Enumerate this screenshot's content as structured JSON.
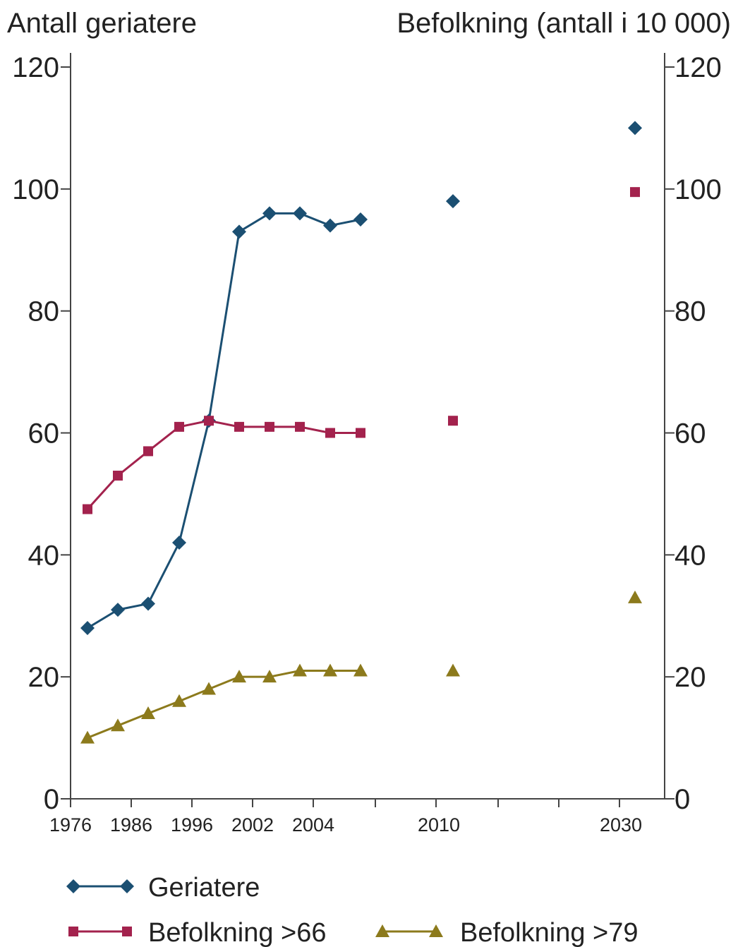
{
  "chart_data": {
    "type": "line",
    "ylabel_left": "Antall geriatere",
    "ylabel_right": "Befolkning (antall i 10 000)",
    "ylim": [
      0,
      120
    ],
    "y_ticks": [
      0,
      20,
      40,
      60,
      80,
      100,
      120
    ],
    "x_tick_labels": [
      "1976",
      "1986",
      "1996",
      "2002",
      "2004",
      "2010",
      "2030"
    ],
    "grid": false,
    "legend_position": "bottom",
    "series": [
      {
        "name": "Geriatere",
        "color": "#1b4f72",
        "marker": "diamond",
        "points": [
          {
            "x": 1976,
            "y": 28
          },
          {
            "x": 1981,
            "y": 31
          },
          {
            "x": 1986,
            "y": 32
          },
          {
            "x": 1991,
            "y": 42
          },
          {
            "x": 1996,
            "y": 62
          },
          {
            "x": 2001,
            "y": 93
          },
          {
            "x": 2002,
            "y": 96
          },
          {
            "x": 2003,
            "y": 96
          },
          {
            "x": 2004,
            "y": 94
          },
          {
            "x": 2005,
            "y": 95
          }
        ],
        "projections": [
          {
            "x": 2010,
            "y": 98
          },
          {
            "x": 2030,
            "y": 110
          }
        ]
      },
      {
        "name": "Befolkning >66",
        "color": "#a3224d",
        "marker": "square",
        "points": [
          {
            "x": 1976,
            "y": 47.5
          },
          {
            "x": 1981,
            "y": 53
          },
          {
            "x": 1986,
            "y": 57
          },
          {
            "x": 1991,
            "y": 61
          },
          {
            "x": 1996,
            "y": 62
          },
          {
            "x": 2001,
            "y": 61
          },
          {
            "x": 2002,
            "y": 61
          },
          {
            "x": 2003,
            "y": 61
          },
          {
            "x": 2004,
            "y": 60
          },
          {
            "x": 2005,
            "y": 60
          }
        ],
        "projections": [
          {
            "x": 2010,
            "y": 62
          },
          {
            "x": 2030,
            "y": 99.5
          }
        ]
      },
      {
        "name": "Befolkning  >79",
        "color": "#8c7a1c",
        "marker": "triangle",
        "points": [
          {
            "x": 1976,
            "y": 10
          },
          {
            "x": 1981,
            "y": 12
          },
          {
            "x": 1986,
            "y": 14
          },
          {
            "x": 1991,
            "y": 16
          },
          {
            "x": 1996,
            "y": 18
          },
          {
            "x": 2001,
            "y": 20
          },
          {
            "x": 2002,
            "y": 20
          },
          {
            "x": 2003,
            "y": 21
          },
          {
            "x": 2004,
            "y": 21
          },
          {
            "x": 2005,
            "y": 21
          }
        ],
        "projections": [
          {
            "x": 2010,
            "y": 21
          },
          {
            "x": 2030,
            "y": 33
          }
        ]
      }
    ]
  }
}
